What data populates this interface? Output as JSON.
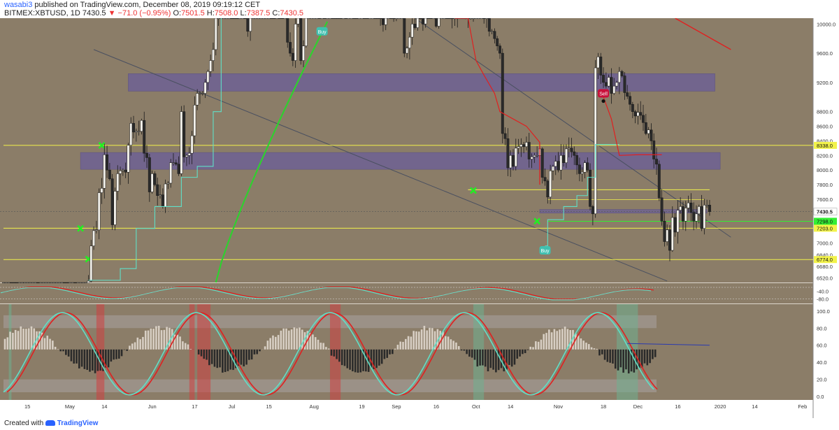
{
  "header": {
    "username": "wasabi3",
    "published_text": "published on TradingView.com, December 08, 2019 09:19:12 CET",
    "symbol": "BITMEX:XBTUSD, 1D",
    "last": "7430.5",
    "change": "−71.0 (−0.95%)",
    "o_label": "O:",
    "o": "7501.5",
    "h_label": "H:",
    "h": "7508.0",
    "l_label": "L:",
    "l": "7387.5",
    "c_label": "C:",
    "c": "7430.5"
  },
  "footer": {
    "created_with": "Created with",
    "brand": "TradingView"
  },
  "colors": {
    "background": "#8b7d68",
    "axis_bg": "#ffffff",
    "zone": "#6f6391",
    "level": "#f2f24a",
    "green_level": "#33ee33",
    "red": "#e02020",
    "cyan": "#5fe0c8"
  },
  "chart_data": [
    {
      "type": "candlestick",
      "panel": "price",
      "y_axis_ticks": [
        "10000.0",
        "9600.0",
        "9200.0",
        "8800.0",
        "8600.0",
        "8400.0",
        "8200.0",
        "8000.0",
        "7800.0",
        "7600.0",
        "7200.0",
        "7000.0",
        "6840.0",
        "6680.0",
        "6520.0"
      ],
      "ylim": [
        6460,
        10080
      ],
      "x_axis_ticks": [
        "15",
        "May",
        "14",
        "Jun",
        "17",
        "Jul",
        "15",
        "Aug",
        "19",
        "Sep",
        "16",
        "Oct",
        "14",
        "Nov",
        "18",
        "Dec",
        "16",
        "2020",
        "14",
        "Feb"
      ],
      "horizontal_levels": [
        {
          "label": "8338.0",
          "value": 8338
        },
        {
          "label": "7298.0",
          "value": 7298
        },
        {
          "label": "7203.0",
          "value": 7203
        },
        {
          "label": "6774.0",
          "value": 6774
        }
      ],
      "current_price_label": "7430.5",
      "current_price": 7430.5,
      "supply_demand_zones": [
        {
          "from": 9080,
          "to": 9320
        },
        {
          "from": 8010,
          "to": 8240
        },
        {
          "from": 7410,
          "to": 7460
        }
      ],
      "signals": [
        {
          "label": "Buy",
          "date": "2019-08-04",
          "value": 9900
        },
        {
          "label": "Sell",
          "date": "2019-11-18",
          "value": 9050
        },
        {
          "label": "Buy",
          "date": "2019-10-27",
          "value": 6900
        }
      ],
      "close_series": {
        "start": "2019-04-06",
        "values": [
          5050,
          5100,
          5200,
          5150,
          5080,
          5000,
          5010,
          5050,
          5110,
          5150,
          5160,
          5170,
          5250,
          5230,
          5260,
          5300,
          5340,
          5450,
          5520,
          5600,
          5650,
          5720,
          5790,
          5750,
          5720,
          5730,
          5810,
          5800,
          5850,
          6200,
          6200,
          6350,
          6480,
          6960,
          7170,
          7180,
          7690,
          7750,
          8210,
          8000,
          7880,
          7250,
          7710,
          7950,
          7990,
          8000,
          7970,
          8340,
          8640,
          8520,
          8530,
          8530,
          8680,
          8230,
          8170,
          7700,
          7950,
          7800,
          7650,
          7660,
          7500,
          7810,
          7820,
          8100,
          8100,
          8080,
          7950,
          8800,
          8180,
          8200,
          8230,
          8470,
          8890,
          9050,
          9050,
          9050,
          9200,
          9350,
          9500,
          9650,
          10120,
          11060,
          11500,
          11650,
          12900,
          13200,
          11700,
          11000,
          10800,
          10900,
          10900,
          10600,
          9900,
          10300,
          11000,
          11400,
          11400,
          11400,
          11900,
          12200,
          12700,
          12000,
          11500,
          11750,
          11400,
          10900,
          11000,
          9750,
          9600,
          9500,
          10000,
          10200,
          9500,
          9700,
          10250,
          11200,
          11340,
          11800,
          12030,
          11000,
          11450,
          11150,
          11650,
          12100,
          11850,
          11800,
          11280,
          10500,
          10700,
          10200,
          10900,
          10900,
          10600,
          10400,
          10700,
          10800,
          10400,
          10200,
          10250,
          10300,
          10200,
          10150,
          10100,
          9990,
          10200,
          10600,
          10500,
          10180,
          10380,
          10480,
          10480,
          9600,
          9670,
          9820,
          10000,
          9950,
          10200,
          10120,
          10000,
          10300,
          10250,
          10200,
          10200,
          9970,
          10200,
          10200,
          10400,
          10280,
          10250,
          10100,
          10100,
          10300,
          10400,
          10300,
          10140,
          10100,
          10150,
          10150,
          10260,
          10330,
          10380,
          10100,
          10100,
          9900,
          9900,
          9800,
          9700,
          9600,
          8500,
          8430,
          8030,
          8200,
          8050,
          8300,
          8320,
          8350,
          8320,
          8380,
          8150,
          8180,
          8200,
          8200,
          8290,
          7900,
          7850,
          7630,
          7990,
          8050,
          8120,
          8000,
          8200,
          8100,
          8290,
          8300,
          8250,
          8200,
          8070,
          7950,
          7970,
          8100,
          8000,
          7500,
          7400,
          9400,
          9550,
          9300,
          9200,
          9150,
          9270,
          9050,
          9150,
          9200,
          9350,
          9290,
          9060,
          9010,
          8900,
          8800,
          8740,
          8790,
          8750,
          8650,
          8500,
          8550,
          8400,
          8150,
          8080,
          7620,
          7300,
          7020,
          7180,
          6900,
          7350,
          7150,
          7450,
          7500,
          7300,
          7480,
          7550,
          7420,
          7300,
          7400,
          7500,
          7200,
          7520,
          7520,
          7430
        ]
      },
      "trend_lines": [
        {
          "name": "descending-1",
          "from": [
            "2019-05-10",
            9650
          ],
          "to": [
            "2019-12-12",
            6480
          ]
        },
        {
          "name": "descending-2",
          "from": [
            "2019-09-08",
            10500
          ],
          "to": [
            "2020-01-05",
            7080
          ]
        }
      ]
    },
    {
      "type": "line",
      "panel": "oscillator-1",
      "y_axis_ticks": [
        "-40.0",
        "-80.0"
      ]
    },
    {
      "type": "line",
      "panel": "stochastic-rsi",
      "y_axis_ticks": [
        "100.0",
        "80.0",
        "60.0",
        "40.0",
        "20.0",
        "0.0"
      ],
      "ylim": [
        -4,
        108
      ]
    }
  ]
}
